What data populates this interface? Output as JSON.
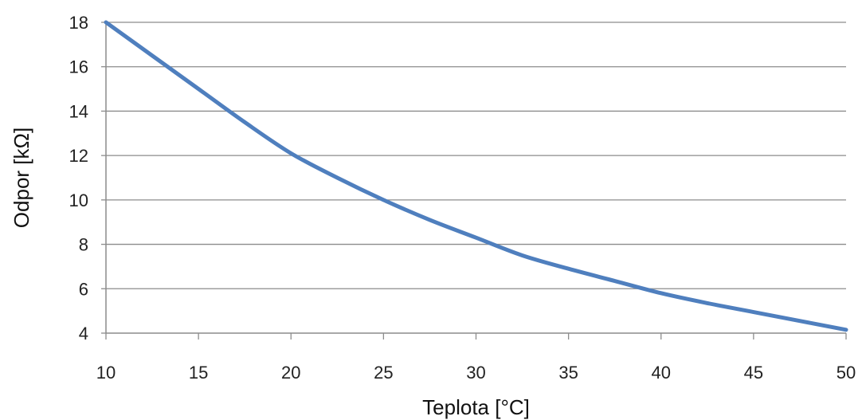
{
  "chart_data": {
    "type": "line",
    "title": "",
    "xlabel": "Teplota [°C]",
    "ylabel": "Odpor [kΩ]",
    "xlim": [
      10,
      50
    ],
    "ylim": [
      4,
      18
    ],
    "xticks": [
      10,
      15,
      20,
      25,
      30,
      35,
      40,
      45,
      50
    ],
    "yticks": [
      4,
      6,
      8,
      10,
      12,
      14,
      16,
      18
    ],
    "grid": "horizontal",
    "legend": "none",
    "series": [
      {
        "color": "#4f7fbe",
        "x": [
          10,
          12.5,
          15,
          17.5,
          20,
          22.5,
          25,
          27.5,
          30,
          32.5,
          35,
          37.5,
          40,
          42.5,
          45,
          47.5,
          50
        ],
        "y": [
          18.0,
          16.5,
          15.0,
          13.5,
          12.1,
          11.0,
          10.0,
          9.1,
          8.3,
          7.5,
          6.9,
          6.35,
          5.8,
          5.35,
          4.95,
          4.55,
          4.15
        ]
      }
    ]
  }
}
